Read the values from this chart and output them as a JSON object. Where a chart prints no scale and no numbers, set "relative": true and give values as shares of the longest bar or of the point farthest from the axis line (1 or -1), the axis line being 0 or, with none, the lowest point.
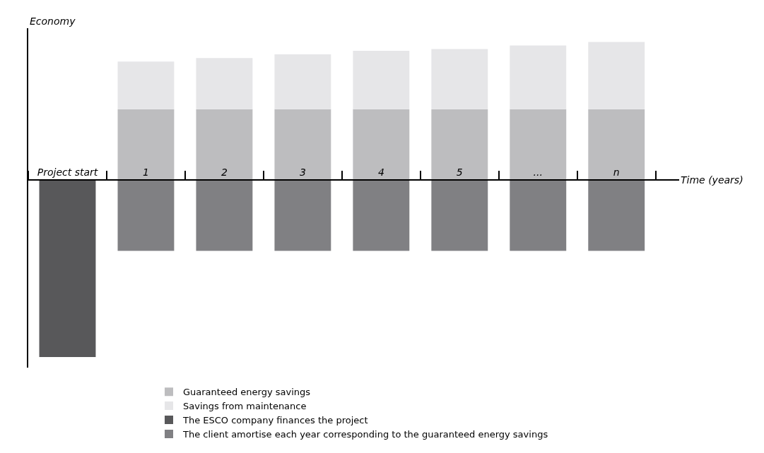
{
  "chart_data": {
    "type": "bar",
    "relative": true,
    "stacked": true,
    "xlabel": "Time (years)",
    "annotations": [
      "Economy"
    ],
    "categories": [
      "Project start",
      "1",
      "2",
      "3",
      "4",
      "5",
      "...",
      "n"
    ],
    "series": [
      {
        "name": "Guaranteed energy savings",
        "color": "#bdbdbf",
        "values": [
          null,
          0.4,
          0.4,
          0.4,
          0.4,
          0.4,
          0.4,
          0.4
        ]
      },
      {
        "name": "Savings from maintenance",
        "color": "#e6e6e8",
        "values": [
          null,
          0.27,
          0.29,
          0.31,
          0.33,
          0.34,
          0.36,
          0.38
        ]
      },
      {
        "name": "The ESCO company finances the project",
        "color": "#58585a",
        "values": [
          -1,
          null,
          null,
          null,
          null,
          null,
          null,
          null
        ]
      },
      {
        "name": "The client amortise each year corresponding to the guaranteed energy savings",
        "color": "#808083",
        "values": [
          null,
          -0.4,
          -0.4,
          -0.4,
          -0.4,
          -0.4,
          -0.4,
          -0.4
        ]
      }
    ],
    "legend": "bottom"
  }
}
